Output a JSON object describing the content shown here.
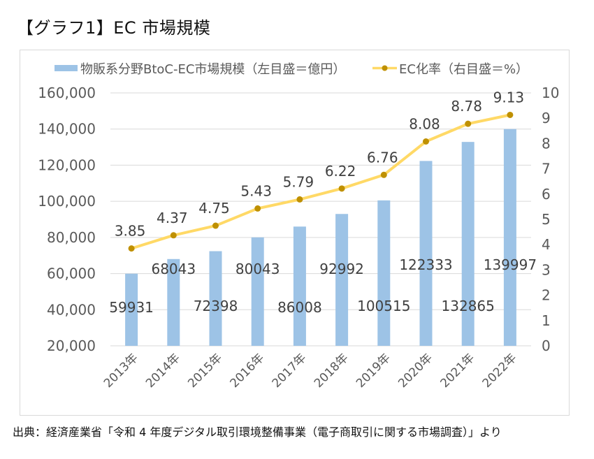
{
  "page": {
    "title": "【グラフ1】EC 市場規模",
    "source": "出典：経済産業省「令和 4 年度デジタル取引環境整備事業（電子商取引に関する市場調査）」より"
  },
  "colors": {
    "bar": "#9dc3e6",
    "line": "#ffd966",
    "marker": "#bf9000",
    "grid": "#d9d9d9"
  },
  "chart_data": {
    "type": "bar+line",
    "title": "【グラフ1】EC 市場規模",
    "categories": [
      "2013年",
      "2014年",
      "2015年",
      "2016年",
      "2017年",
      "2018年",
      "2019年",
      "2020年",
      "2021年",
      "2022年"
    ],
    "series": [
      {
        "name": "物販系分野BtoC-EC市場規模（左目盛＝億円）",
        "type": "bar",
        "axis": "left",
        "values": [
          59931,
          68043,
          72398,
          80043,
          86008,
          92992,
          100515,
          122333,
          132865,
          139997
        ],
        "labels": [
          "59931",
          "68043",
          "72398",
          "80043",
          "86008",
          "92992",
          "100515",
          "122333",
          "132865",
          "139997"
        ]
      },
      {
        "name": "EC化率（右目盛＝%）",
        "type": "line",
        "axis": "right",
        "values": [
          3.85,
          4.37,
          4.75,
          5.43,
          5.79,
          6.22,
          6.76,
          8.08,
          8.78,
          9.13
        ],
        "labels": [
          "3.85",
          "4.37",
          "4.75",
          "5.43",
          "5.79",
          "6.22",
          "6.76",
          "8.08",
          "8.78",
          "9.13"
        ]
      }
    ],
    "left_axis": {
      "range": [
        20000,
        160000
      ],
      "ticks": [
        20000,
        40000,
        60000,
        80000,
        100000,
        120000,
        140000,
        160000
      ],
      "tick_labels": [
        "20,000",
        "40,000",
        "60,000",
        "80,000",
        "100,000",
        "120,000",
        "140,000",
        "160,000"
      ]
    },
    "right_axis": {
      "range": [
        0,
        10
      ],
      "ticks": [
        0,
        1,
        2,
        3,
        4,
        5,
        6,
        7,
        8,
        9,
        10
      ],
      "tick_labels": [
        "0",
        "1",
        "2",
        "3",
        "4",
        "5",
        "6",
        "7",
        "8",
        "9",
        "10"
      ]
    },
    "grid": true,
    "legend_position": "top"
  }
}
